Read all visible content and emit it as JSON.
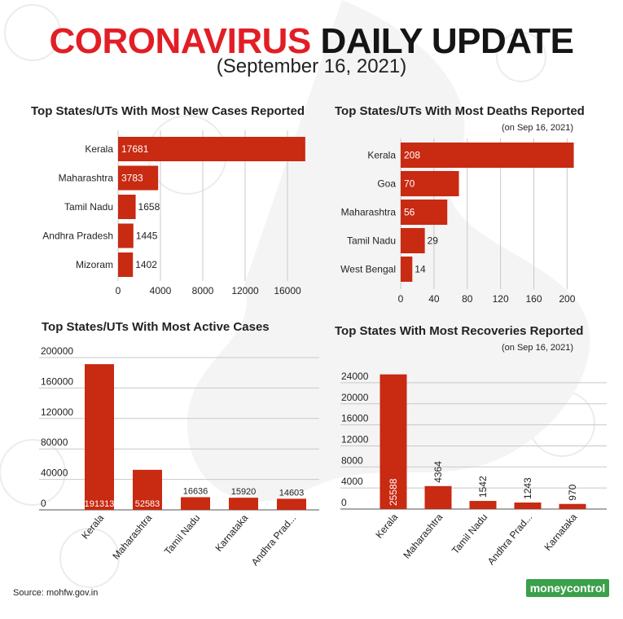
{
  "header": {
    "title_red": "CORONAVIRUS",
    "title_black": "DAILY UPDATE",
    "subtitle": "(September 16, 2021)"
  },
  "chart_data": [
    {
      "type": "bar",
      "orientation": "horizontal",
      "title": "Top States/UTs With Most New Cases Reported",
      "categories": [
        "Kerala",
        "Maharashtra",
        "Tamil Nadu",
        "Andhra Pradesh",
        "Mizoram"
      ],
      "values": [
        17681,
        3783,
        1658,
        1445,
        1402
      ],
      "labels": [
        "17681",
        "3783",
        "1658",
        "1445",
        "1402"
      ],
      "ticks": [
        "0",
        "4000",
        "8000",
        "12000",
        "16000"
      ],
      "tick_values": [
        0,
        4000,
        8000,
        12000,
        16000
      ],
      "xlim": [
        0,
        20000
      ],
      "grid": true
    },
    {
      "type": "bar",
      "orientation": "horizontal",
      "title": "Top States/UTs With Most Deaths Reported",
      "note": "(on Sep 16, 2021)",
      "categories": [
        "Kerala",
        "Goa",
        "Maharashtra",
        "Tamil Nadu",
        "West Bengal"
      ],
      "values": [
        208,
        70,
        56,
        29,
        14
      ],
      "labels": [
        "208",
        "70",
        "56",
        "29",
        "14"
      ],
      "ticks": [
        "0",
        "40",
        "80",
        "120",
        "160",
        "200"
      ],
      "tick_values": [
        0,
        40,
        80,
        120,
        160,
        200
      ],
      "xlim": [
        0,
        228
      ],
      "grid": true
    },
    {
      "type": "bar",
      "orientation": "vertical",
      "title": "Top States/UTs With Most Active Cases",
      "categories": [
        "Kerala",
        "Maharashtra",
        "Tamil Nadu",
        "Karnataka",
        "Andhra Prad..."
      ],
      "values": [
        191313,
        52583,
        16636,
        15920,
        14603
      ],
      "labels": [
        "191313",
        "52583",
        "16636",
        "15920",
        "14603"
      ],
      "ticks": [
        "0",
        "40000",
        "80000",
        "120000",
        "160000",
        "200000"
      ],
      "tick_values": [
        0,
        40000,
        80000,
        120000,
        160000,
        200000
      ],
      "ylim": [
        0,
        200000
      ],
      "grid": true
    },
    {
      "type": "bar",
      "orientation": "vertical",
      "title": "Top States With Most Recoveries Reported",
      "note": "(on Sep 16, 2021)",
      "categories": [
        "Kerala",
        "Maharashtra",
        "Tamil Nadu",
        "Andhra Prad...",
        "Karnataka"
      ],
      "values": [
        25588,
        4364,
        1542,
        1243,
        970
      ],
      "labels": [
        "25588",
        "4364",
        "1542",
        "1243",
        "970"
      ],
      "ticks": [
        "0",
        "4000",
        "8000",
        "12000",
        "16000",
        "20000",
        "24000"
      ],
      "tick_values": [
        0,
        4000,
        8000,
        12000,
        16000,
        20000,
        24000
      ],
      "ylim": [
        0,
        26000
      ],
      "grid": true
    }
  ],
  "footer": {
    "source": "Source: mohfw.gov.in",
    "logo": "moneycontrol"
  },
  "colors": {
    "bar": "#c82a12",
    "title_red": "#e21e25",
    "logo_green": "#3aa04a",
    "grid": "#c8c8c8"
  }
}
